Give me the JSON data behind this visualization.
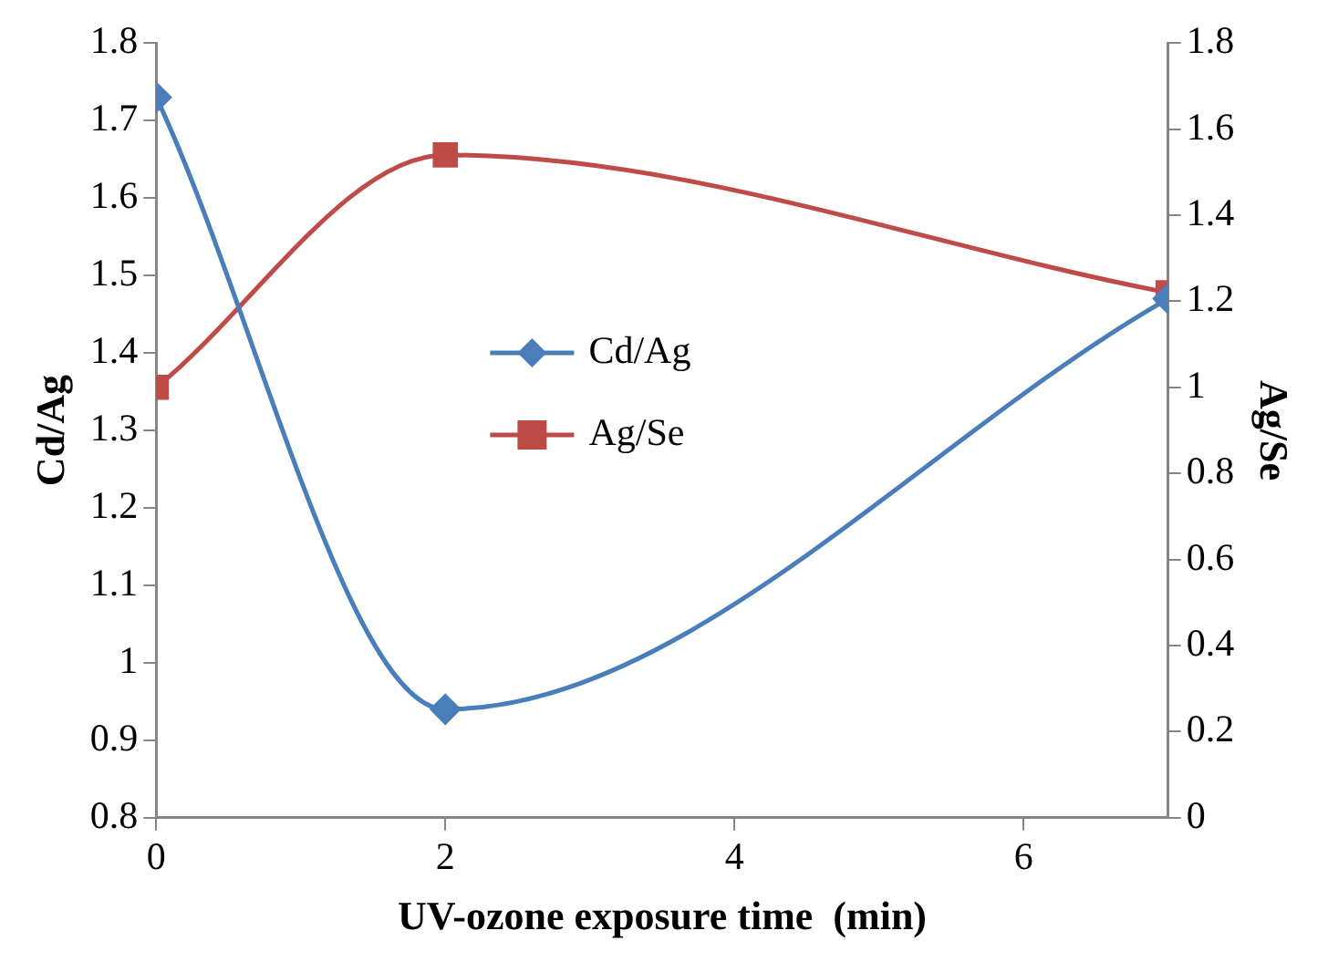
{
  "chart_data": {
    "type": "line",
    "xlabel": "UV-ozone exposure time  (min)",
    "ylabel": "Cd/Ag",
    "y2label": "Ag/Se",
    "x": [
      0,
      2,
      7
    ],
    "series": [
      {
        "name": "Cd/Ag",
        "color": "#4a7ebb",
        "values": [
          1.73,
          0.94,
          1.47
        ],
        "marker": "diamond"
      },
      {
        "name": "Ag/Se",
        "color": "#be4b48",
        "values": [
          1.0,
          1.54,
          1.22
        ],
        "marker": "square",
        "axis": "y2"
      }
    ],
    "xlim": [
      0,
      7
    ],
    "xticks": [
      0,
      2,
      4,
      6
    ],
    "ylim": [
      0.8,
      1.8
    ],
    "yticks": [
      0.8,
      0.9,
      1,
      1.1,
      1.2,
      1.3,
      1.4,
      1.5,
      1.6,
      1.7,
      1.8
    ],
    "y2lim": [
      0,
      1.8
    ],
    "y2ticks": [
      0,
      0.2,
      0.4,
      0.6,
      0.8,
      1,
      1.2,
      1.4,
      1.6,
      1.8
    ],
    "grid": false,
    "legend": "center",
    "line_style": "solid"
  }
}
